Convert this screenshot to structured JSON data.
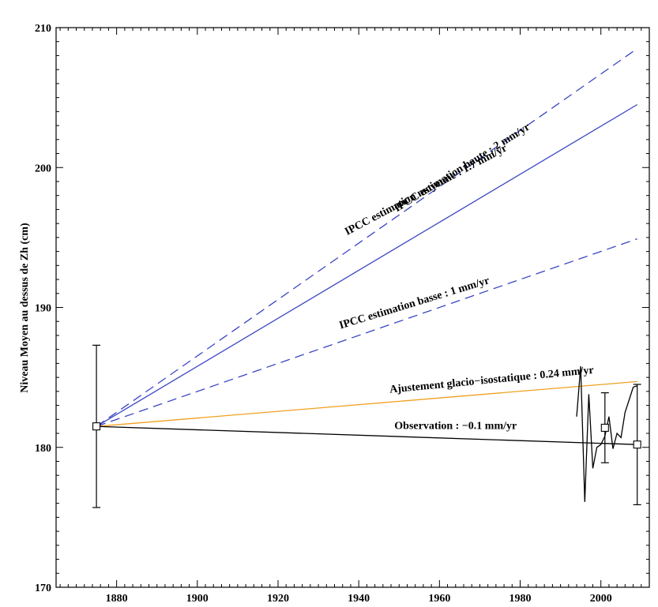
{
  "chart_data": {
    "type": "line",
    "title": "",
    "xlabel": "",
    "ylabel": "Niveau Moyen au dessus de Zh (cm)",
    "xlim": [
      1865,
      2012
    ],
    "ylim": [
      170,
      210
    ],
    "x_ticks": [
      1880,
      1900,
      1920,
      1940,
      1960,
      1980,
      2000
    ],
    "y_ticks": [
      170,
      180,
      190,
      200,
      210
    ],
    "grid": false,
    "series": [
      {
        "key": "ipcc_haute",
        "color": "#3a46c4",
        "dash": "dashed",
        "x": [
          1875,
          2009
        ],
        "y": [
          181.5,
          208.5
        ]
      },
      {
        "key": "ipcc_moyenne",
        "color": "#3a46c4",
        "dash": "solid",
        "x": [
          1875,
          2009
        ],
        "y": [
          181.5,
          204.5
        ]
      },
      {
        "key": "ipcc_basse",
        "color": "#3a46c4",
        "dash": "dashed",
        "x": [
          1875,
          2009
        ],
        "y": [
          181.5,
          194.9
        ]
      },
      {
        "key": "glacio",
        "color": "#f0a020",
        "dash": "solid",
        "x": [
          1875,
          2009
        ],
        "y": [
          181.5,
          184.7
        ]
      },
      {
        "key": "observation_trend",
        "color": "#000000",
        "dash": "solid",
        "x": [
          1875,
          2009
        ],
        "y": [
          181.5,
          180.2
        ]
      },
      {
        "key": "observation_data",
        "color": "#000000",
        "dash": "solid",
        "x": [
          1994,
          1995,
          1996,
          1997,
          1998,
          1999,
          2000,
          2001,
          2002,
          2003,
          2004,
          2005,
          2006,
          2007,
          2008,
          2009
        ],
        "y": [
          182.2,
          185.8,
          176.1,
          183.8,
          178.5,
          180.0,
          180.2,
          180.8,
          182.2,
          179.9,
          181.0,
          180.7,
          182.5,
          183.4,
          184.3,
          184.4
        ]
      }
    ],
    "points": [
      {
        "x": 1875,
        "y": 181.5,
        "err_low": 175.7,
        "err_high": 187.3
      },
      {
        "x": 2001,
        "y": 181.4,
        "err_low": 178.9,
        "err_high": 183.9
      },
      {
        "x": 2009,
        "y": 180.2,
        "err_low": 175.9,
        "err_high": 184.5
      }
    ],
    "annotations": [
      {
        "text": "IPCC estimation haute : 2 mm/yr",
        "x": 1966,
        "y": 199.8,
        "angle": -32
      },
      {
        "text": "IPCC estimation moyenne : 1.7 mm/yr",
        "x": 1957,
        "y": 198.2,
        "angle": -28
      },
      {
        "text": "IPCC estimation basse : 1 mm/yr",
        "x": 1954,
        "y": 190.1,
        "angle": -17
      },
      {
        "text": "Ajustement glacio−isostatique : 0.24 mm/yr",
        "x": 1973,
        "y": 184.6,
        "angle": -5.5
      },
      {
        "text": "Observation  : −0.1 mm/yr",
        "x": 1964,
        "y": 181.3,
        "angle": 0
      }
    ]
  }
}
